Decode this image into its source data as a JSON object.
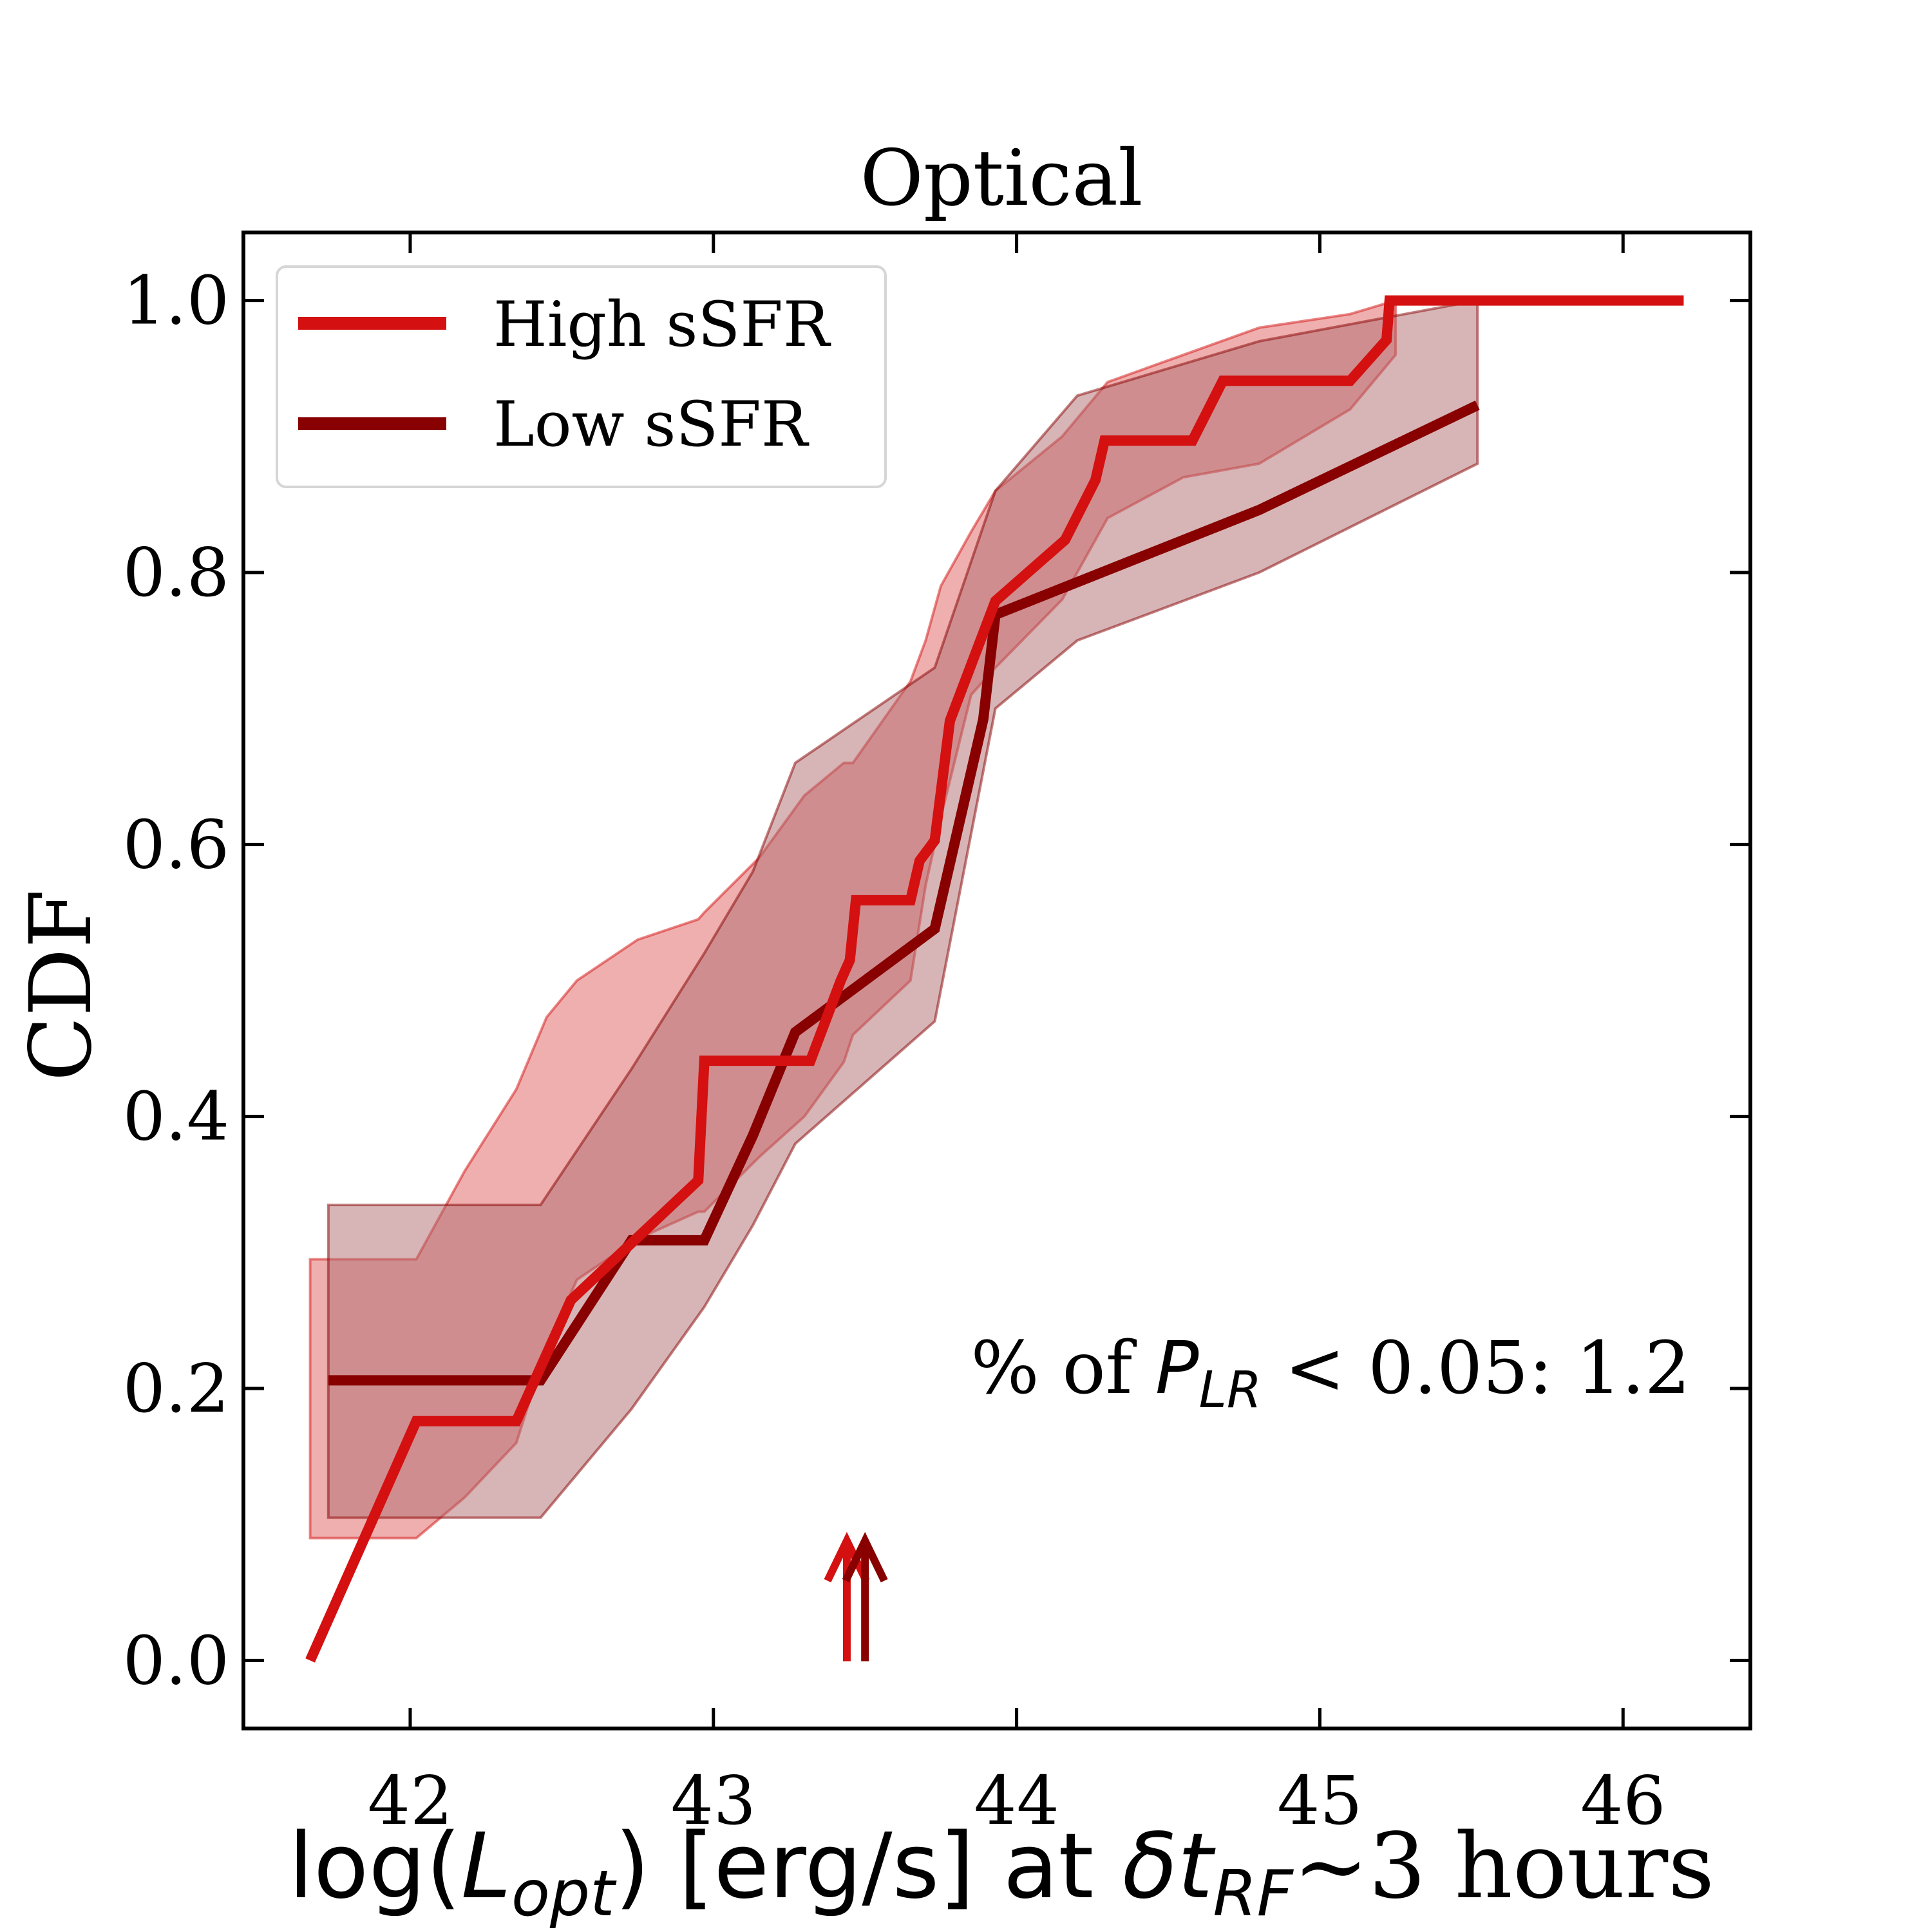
{
  "chart_data": {
    "type": "line",
    "title": "Optical",
    "xlabel": {
      "prefix": "log(",
      "L": "L",
      "L_sub": "opt",
      "mid": ") [erg/s] at ",
      "delta": "δ",
      "t": "t",
      "t_sub": "RF",
      "suffix": "~3 hours"
    },
    "ylabel": "CDF",
    "xlim": [
      41.45,
      46.42
    ],
    "ylim": [
      -0.05,
      1.05
    ],
    "xticks": [
      42,
      43,
      44,
      45,
      46
    ],
    "xtick_labels": [
      "42",
      "43",
      "44",
      "45",
      "46"
    ],
    "yticks": [
      0.0,
      0.2,
      0.4,
      0.6,
      0.8,
      1.0
    ],
    "ytick_labels": [
      "0.0",
      "0.2",
      "0.4",
      "0.6",
      "0.8",
      "1.0"
    ],
    "grid": false,
    "legend": {
      "location": "upper-left",
      "entries": [
        "High sSFR",
        "Low sSFR"
      ]
    },
    "annotation": {
      "prefix": "% of ",
      "P": "P",
      "P_sub": "LR",
      "suffix": " < 0.05: 1.2"
    },
    "series": [
      {
        "name": "High sSFR",
        "color": "#d41010",
        "band_color": "#e06060",
        "x": [
          41.67,
          42.02,
          42.35,
          42.53,
          42.95,
          42.97,
          43.32,
          43.42,
          43.45,
          43.47,
          43.65,
          43.68,
          43.73,
          43.78,
          43.93,
          44.16,
          44.26,
          44.29,
          44.58,
          44.68,
          45.1,
          45.22,
          45.23,
          46.2
        ],
        "y": [
          0.0,
          0.176,
          0.176,
          0.265,
          0.353,
          0.441,
          0.441,
          0.5,
          0.515,
          0.559,
          0.559,
          0.588,
          0.603,
          0.691,
          0.779,
          0.824,
          0.868,
          0.897,
          0.897,
          0.941,
          0.941,
          0.971,
          1.0,
          1.0
        ],
        "band_x": [
          41.67,
          41.75,
          42.02,
          42.18,
          42.35,
          42.45,
          42.55,
          42.75,
          42.95,
          42.97,
          43.15,
          43.3,
          43.43,
          43.46,
          43.65,
          43.7,
          43.75,
          43.85,
          43.93,
          44.15,
          44.3,
          44.55,
          44.8,
          45.1,
          45.25
        ],
        "band_upper": [
          0.295,
          0.295,
          0.295,
          0.36,
          0.42,
          0.473,
          0.5,
          0.53,
          0.545,
          0.55,
          0.59,
          0.636,
          0.66,
          0.66,
          0.72,
          0.75,
          0.79,
          0.83,
          0.86,
          0.9,
          0.94,
          0.96,
          0.98,
          0.99,
          1.0
        ],
        "band_lower": [
          0.09,
          0.09,
          0.09,
          0.12,
          0.16,
          0.23,
          0.28,
          0.31,
          0.33,
          0.33,
          0.37,
          0.4,
          0.44,
          0.46,
          0.5,
          0.57,
          0.62,
          0.71,
          0.73,
          0.78,
          0.84,
          0.87,
          0.88,
          0.92,
          0.96
        ]
      },
      {
        "name": "Low sSFR",
        "color": "#880000",
        "band_color": "#b06b70",
        "x": [
          41.73,
          42.43,
          42.73,
          42.97,
          43.13,
          43.27,
          43.73,
          43.89,
          43.93,
          44.8,
          45.52
        ],
        "y": [
          0.206,
          0.206,
          0.309,
          0.309,
          0.386,
          0.462,
          0.538,
          0.692,
          0.769,
          0.846,
          0.923
        ],
        "band_x": [
          41.73,
          42.43,
          42.73,
          42.97,
          43.13,
          43.27,
          43.73,
          43.93,
          44.2,
          44.8,
          45.52
        ],
        "band_upper": [
          0.335,
          0.335,
          0.435,
          0.52,
          0.58,
          0.66,
          0.73,
          0.86,
          0.93,
          0.97,
          1.0
        ],
        "band_lower": [
          0.105,
          0.105,
          0.185,
          0.26,
          0.32,
          0.38,
          0.47,
          0.7,
          0.75,
          0.8,
          0.88
        ]
      }
    ],
    "markers": [
      {
        "name": "High sSFR median",
        "type": "upward-arrow",
        "x": 43.44,
        "color": "#d41010"
      },
      {
        "name": "Low sSFR median",
        "type": "upward-arrow",
        "x": 43.5,
        "color": "#880000"
      }
    ]
  }
}
